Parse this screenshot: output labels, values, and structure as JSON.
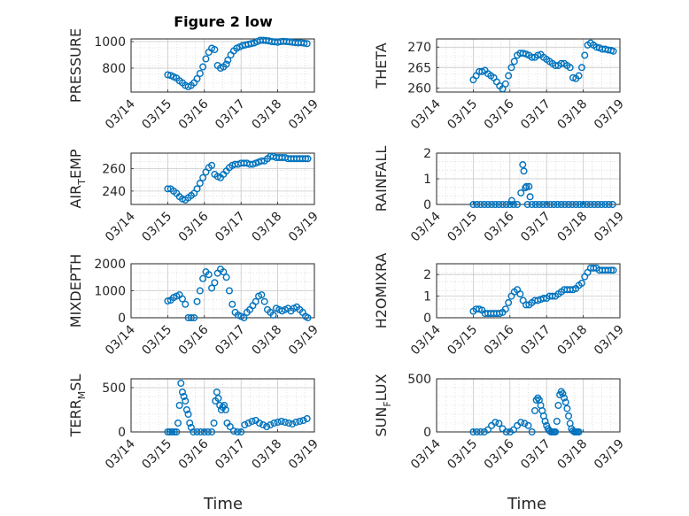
{
  "title": "Figure 2 low",
  "xaxis": {
    "label": "Time",
    "ticks": [
      "03/14",
      "03/15",
      "03/16",
      "03/17",
      "03/18",
      "03/19"
    ]
  },
  "marker_color": "#0072bd",
  "chart_data": [
    {
      "type": "scatter",
      "ylabel": "PRESSURE",
      "ylim": [
        620,
        1020
      ],
      "yticks": [
        800,
        1000
      ],
      "grid": true,
      "x": [
        1.0,
        1.08,
        1.16,
        1.24,
        1.32,
        1.4,
        1.48,
        1.56,
        1.64,
        1.72,
        1.8,
        1.88,
        1.96,
        2.04,
        2.12,
        2.2,
        2.28,
        2.36,
        2.44,
        2.52,
        2.6,
        2.64,
        2.72,
        2.8,
        2.88,
        2.96,
        3.04,
        3.12,
        3.2,
        3.28,
        3.36,
        3.44,
        3.52,
        3.6,
        3.68,
        3.76,
        3.84,
        3.92,
        4.0,
        4.08,
        4.16,
        4.24,
        4.32,
        4.4,
        4.48,
        4.56,
        4.64,
        4.72,
        4.8
      ],
      "y": [
        750,
        745,
        735,
        725,
        705,
        690,
        670,
        660,
        670,
        690,
        720,
        760,
        810,
        870,
        920,
        950,
        940,
        820,
        800,
        810,
        830,
        860,
        900,
        930,
        950,
        960,
        970,
        975,
        980,
        985,
        990,
        1000,
        1010,
        1010,
        1008,
        1005,
        1000,
        998,
        995,
        1000,
        1002,
        1000,
        998,
        995,
        992,
        990,
        992,
        988,
        985
      ]
    },
    {
      "type": "scatter",
      "ylabel": "THETA",
      "ylim": [
        259,
        272
      ],
      "yticks": [
        260,
        265,
        270
      ],
      "grid": true,
      "x": [
        1.0,
        1.08,
        1.16,
        1.24,
        1.32,
        1.4,
        1.48,
        1.56,
        1.64,
        1.72,
        1.8,
        1.88,
        1.96,
        2.04,
        2.12,
        2.2,
        2.28,
        2.36,
        2.44,
        2.52,
        2.6,
        2.68,
        2.76,
        2.84,
        2.92,
        3.0,
        3.08,
        3.16,
        3.24,
        3.32,
        3.4,
        3.48,
        3.56,
        3.64,
        3.72,
        3.8,
        3.88,
        3.96,
        4.04,
        4.12,
        4.2,
        4.28,
        4.36,
        4.44,
        4.52,
        4.6,
        4.68,
        4.76,
        4.82
      ],
      "y": [
        262,
        263,
        264,
        264,
        264.3,
        263.5,
        263,
        262.5,
        261.5,
        260.5,
        259.8,
        261,
        263,
        265,
        266.5,
        268,
        268.5,
        268.5,
        268.3,
        268,
        267.5,
        267.5,
        268,
        268.2,
        267.5,
        267,
        266.5,
        266,
        265.5,
        265.5,
        266,
        266,
        265.5,
        265,
        262.5,
        262.3,
        263,
        265,
        268,
        270.5,
        271,
        270.5,
        270,
        269.8,
        269.5,
        269.5,
        269.3,
        269.2,
        269
      ]
    },
    {
      "type": "scatter",
      "ylabel": "AIR_TEMP",
      "ylim": [
        228,
        274
      ],
      "yticks": [
        240,
        260
      ],
      "grid": true,
      "x": [
        1.0,
        1.08,
        1.16,
        1.24,
        1.32,
        1.4,
        1.48,
        1.56,
        1.64,
        1.72,
        1.8,
        1.88,
        1.96,
        2.04,
        2.12,
        2.2,
        2.28,
        2.36,
        2.44,
        2.52,
        2.6,
        2.68,
        2.76,
        2.84,
        2.92,
        3.0,
        3.08,
        3.16,
        3.24,
        3.32,
        3.4,
        3.48,
        3.56,
        3.64,
        3.72,
        3.8,
        3.88,
        3.96,
        4.04,
        4.12,
        4.2,
        4.28,
        4.36,
        4.44,
        4.52,
        4.6,
        4.68,
        4.76,
        4.82
      ],
      "y": [
        242,
        242,
        240,
        238,
        235,
        233,
        232,
        234,
        236,
        238,
        242,
        247,
        252,
        257,
        261,
        263,
        255,
        253,
        252,
        255,
        258,
        261,
        263,
        264,
        264,
        265,
        265,
        265,
        264,
        264,
        265,
        266,
        267,
        267,
        269,
        271,
        271,
        270,
        270,
        270,
        270,
        269,
        269,
        269,
        269,
        269,
        269,
        269,
        269
      ]
    },
    {
      "type": "scatter",
      "ylabel": "RAINFALL",
      "ylim": [
        0,
        2
      ],
      "yticks": [
        0,
        1,
        2
      ],
      "grid": true,
      "x": [
        1.0,
        1.1,
        1.2,
        1.3,
        1.4,
        1.5,
        1.6,
        1.7,
        1.8,
        1.9,
        2.0,
        2.05,
        2.1,
        2.2,
        2.3,
        2.35,
        2.38,
        2.42,
        2.45,
        2.48,
        2.52,
        2.55,
        2.6,
        2.7,
        2.8,
        2.9,
        3.0,
        3.1,
        3.2,
        3.3,
        3.4,
        3.5,
        3.6,
        3.7,
        3.8,
        3.9,
        4.0,
        4.1,
        4.2,
        4.3,
        4.4,
        4.5,
        4.6,
        4.7,
        4.8
      ],
      "y": [
        0,
        0,
        0,
        0,
        0,
        0,
        0,
        0,
        0,
        0,
        0,
        0.15,
        0,
        0,
        0.45,
        1.55,
        1.3,
        0.65,
        0.7,
        0,
        0.7,
        0.3,
        0,
        0,
        0,
        0,
        0,
        0,
        0,
        0,
        0,
        0,
        0,
        0,
        0,
        0,
        0,
        0,
        0,
        0,
        0,
        0,
        0,
        0,
        0
      ]
    },
    {
      "type": "scatter",
      "ylabel": "MIXDEPTH",
      "ylim": [
        0,
        2000
      ],
      "yticks": [
        0,
        1000,
        2000
      ],
      "grid": true,
      "x": [
        1.0,
        1.08,
        1.16,
        1.24,
        1.32,
        1.4,
        1.48,
        1.56,
        1.64,
        1.72,
        1.8,
        1.88,
        1.96,
        2.04,
        2.12,
        2.2,
        2.28,
        2.36,
        2.44,
        2.52,
        2.6,
        2.68,
        2.76,
        2.84,
        2.92,
        3.0,
        3.08,
        3.16,
        3.24,
        3.32,
        3.4,
        3.48,
        3.56,
        3.64,
        3.72,
        3.8,
        3.88,
        3.96,
        4.04,
        4.12,
        4.2,
        4.28,
        4.36,
        4.44,
        4.52,
        4.6,
        4.68,
        4.76,
        4.82
      ],
      "y": [
        620,
        650,
        750,
        800,
        850,
        700,
        500,
        0,
        0,
        0,
        600,
        1000,
        1450,
        1700,
        1600,
        1100,
        1300,
        1650,
        1800,
        1700,
        1500,
        1000,
        500,
        200,
        100,
        50,
        0,
        200,
        300,
        450,
        600,
        800,
        850,
        600,
        300,
        200,
        100,
        350,
        300,
        250,
        300,
        350,
        250,
        350,
        400,
        300,
        200,
        50,
        0
      ]
    },
    {
      "type": "scatter",
      "ylabel": "H2OMIXRA",
      "ylim": [
        0,
        2.5
      ],
      "yticks": [
        0,
        1,
        2
      ],
      "grid": true,
      "x": [
        1.0,
        1.08,
        1.16,
        1.24,
        1.32,
        1.4,
        1.48,
        1.56,
        1.64,
        1.72,
        1.8,
        1.88,
        1.96,
        2.04,
        2.12,
        2.2,
        2.28,
        2.36,
        2.44,
        2.52,
        2.6,
        2.68,
        2.76,
        2.84,
        2.92,
        3.0,
        3.08,
        3.16,
        3.24,
        3.32,
        3.4,
        3.48,
        3.56,
        3.64,
        3.72,
        3.8,
        3.88,
        3.96,
        4.04,
        4.12,
        4.2,
        4.28,
        4.36,
        4.44,
        4.52,
        4.6,
        4.68,
        4.76,
        4.82
      ],
      "y": [
        0.3,
        0.4,
        0.4,
        0.35,
        0.2,
        0.2,
        0.2,
        0.2,
        0.2,
        0.2,
        0.25,
        0.4,
        0.7,
        1.0,
        1.2,
        1.3,
        1.1,
        0.8,
        0.6,
        0.6,
        0.7,
        0.8,
        0.8,
        0.85,
        0.9,
        0.9,
        1.0,
        1.0,
        1.0,
        1.1,
        1.2,
        1.3,
        1.3,
        1.3,
        1.3,
        1.35,
        1.5,
        1.6,
        1.9,
        2.1,
        2.3,
        2.3,
        2.3,
        2.2,
        2.2,
        2.2,
        2.2,
        2.2,
        2.2
      ]
    },
    {
      "type": "scatter",
      "ylabel": "TERR_MSL",
      "ylim": [
        0,
        600
      ],
      "yticks": [
        0,
        500
      ],
      "grid": true,
      "x": [
        1.0,
        1.06,
        1.12,
        1.18,
        1.24,
        1.28,
        1.32,
        1.36,
        1.4,
        1.44,
        1.48,
        1.52,
        1.56,
        1.6,
        1.64,
        1.7,
        1.8,
        1.9,
        2.0,
        2.1,
        2.2,
        2.26,
        2.3,
        2.34,
        2.38,
        2.42,
        2.46,
        2.5,
        2.54,
        2.58,
        2.62,
        2.7,
        2.8,
        2.9,
        3.0,
        3.1,
        3.2,
        3.3,
        3.4,
        3.5,
        3.6,
        3.7,
        3.8,
        3.9,
        4.0,
        4.1,
        4.2,
        4.3,
        4.4,
        4.5,
        4.6,
        4.7,
        4.8
      ],
      "y": [
        0,
        0,
        0,
        0,
        0,
        100,
        300,
        550,
        450,
        400,
        350,
        250,
        200,
        100,
        50,
        0,
        0,
        0,
        0,
        0,
        0,
        100,
        350,
        450,
        380,
        300,
        250,
        280,
        300,
        250,
        100,
        60,
        10,
        0,
        0,
        80,
        100,
        120,
        130,
        100,
        80,
        60,
        80,
        100,
        110,
        120,
        110,
        100,
        90,
        110,
        120,
        130,
        150
      ]
    },
    {
      "type": "scatter",
      "ylabel": "SUN_FLUX",
      "ylim": [
        0,
        500
      ],
      "yticks": [
        0,
        500
      ],
      "grid": true,
      "x": [
        1.0,
        1.1,
        1.2,
        1.3,
        1.4,
        1.5,
        1.6,
        1.7,
        1.8,
        1.9,
        2.0,
        2.1,
        2.2,
        2.3,
        2.4,
        2.5,
        2.6,
        2.68,
        2.72,
        2.76,
        2.8,
        2.84,
        2.88,
        2.92,
        2.96,
        3.0,
        3.04,
        3.08,
        3.12,
        3.16,
        3.2,
        3.24,
        3.28,
        3.32,
        3.36,
        3.4,
        3.44,
        3.48,
        3.52,
        3.56,
        3.6,
        3.64,
        3.68,
        3.72,
        3.76,
        3.8,
        3.84,
        3.88
      ],
      "y": [
        0,
        0,
        0,
        0,
        20,
        60,
        90,
        80,
        30,
        0,
        0,
        20,
        60,
        90,
        80,
        60,
        0,
        200,
        300,
        320,
        300,
        250,
        200,
        150,
        100,
        60,
        30,
        10,
        0,
        0,
        0,
        0,
        100,
        250,
        350,
        380,
        360,
        320,
        280,
        220,
        150,
        80,
        30,
        10,
        0,
        0,
        0,
        0
      ]
    }
  ]
}
